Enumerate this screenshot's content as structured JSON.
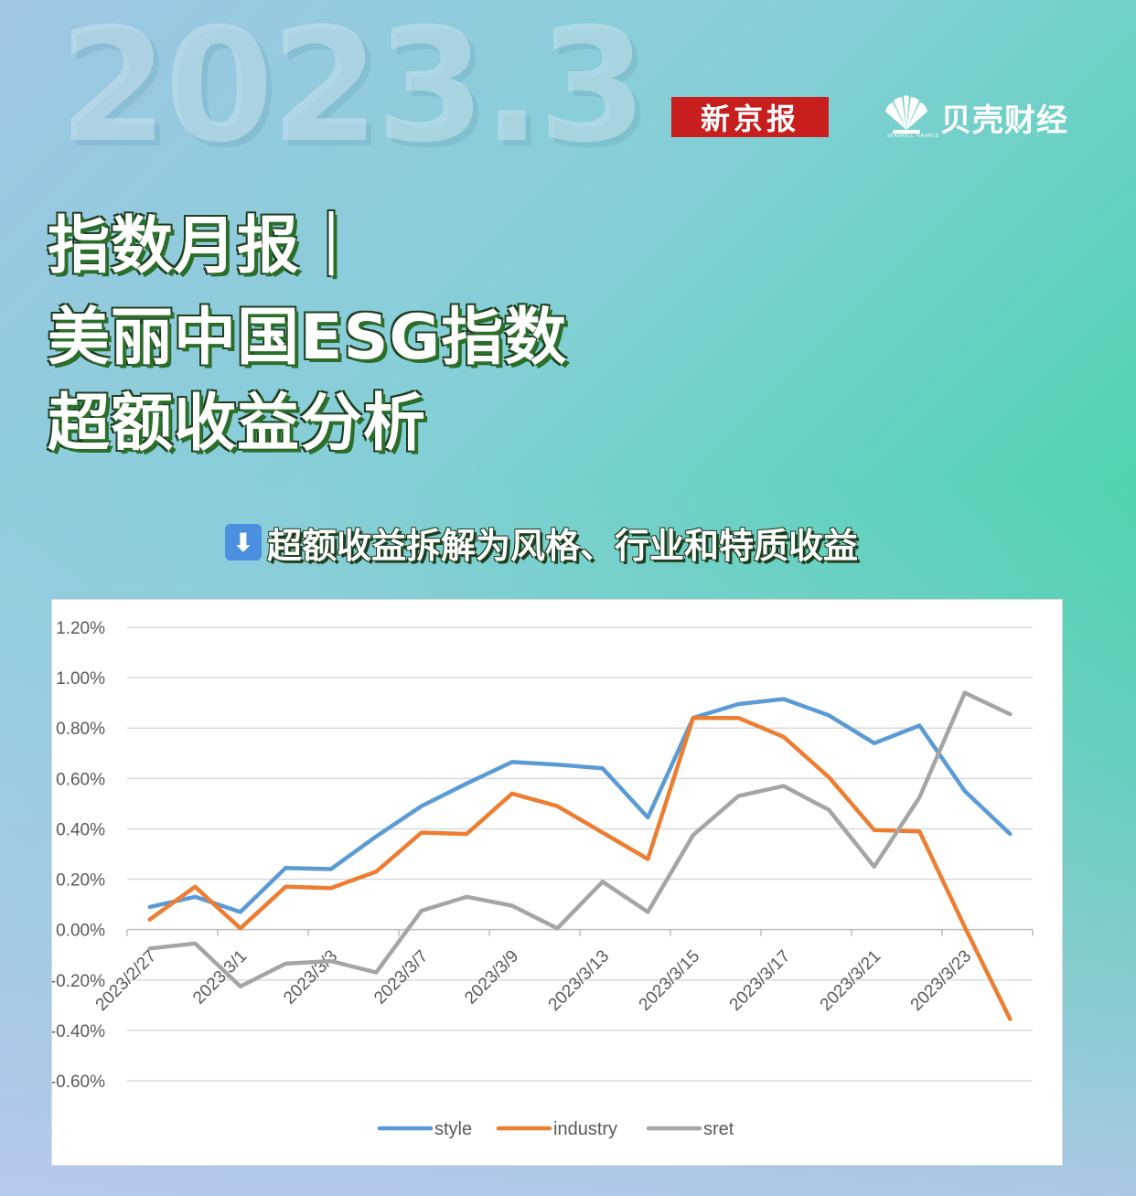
{
  "header": {
    "big_date": "2023.3",
    "brand_xjb": "新京报",
    "brand_bk": "贝壳财经",
    "brand_bk_sub": "SEASHELL FINANCE",
    "title_lines": [
      "指数月报｜",
      "美丽中国ESG指数",
      "超额收益分析"
    ],
    "subhead": "超额收益拆解为风格、行业和特质收益",
    "subhead_icon": "down-arrow-icon"
  },
  "colors": {
    "style": "#5b9bd5",
    "industry": "#ed7d31",
    "sret": "#a5a5a5",
    "grid": "#d9d9d9",
    "axis_text": "#595959"
  },
  "chart_data": {
    "type": "line",
    "x": [
      "2023/2/27",
      "2023/2/28",
      "2023/3/1",
      "2023/3/2",
      "2023/3/3",
      "2023/3/6",
      "2023/3/7",
      "2023/3/8",
      "2023/3/9",
      "2023/3/10",
      "2023/3/13",
      "2023/3/14",
      "2023/3/15",
      "2023/3/16",
      "2023/3/17",
      "2023/3/20",
      "2023/3/21",
      "2023/3/22",
      "2023/3/23",
      "2023/3/24"
    ],
    "x_tick_labels": [
      "2023/2/27",
      "2023/3/1",
      "2023/3/3",
      "2023/3/7",
      "2023/3/9",
      "2023/3/13",
      "2023/3/15",
      "2023/3/17",
      "2023/3/21",
      "2023/3/23"
    ],
    "series": [
      {
        "name": "style",
        "values": [
          0.09,
          0.13,
          0.07,
          0.245,
          0.24,
          0.37,
          0.49,
          0.58,
          0.665,
          0.655,
          0.64,
          0.445,
          0.84,
          0.895,
          0.915,
          0.85,
          0.74,
          0.81,
          0.55,
          0.38
        ]
      },
      {
        "name": "industry",
        "values": [
          0.04,
          0.17,
          0.005,
          0.17,
          0.165,
          0.23,
          0.385,
          0.38,
          0.54,
          0.49,
          0.385,
          0.28,
          0.84,
          0.84,
          0.765,
          0.605,
          0.395,
          0.39,
          0.01,
          -0.355
        ]
      },
      {
        "name": "sret",
        "values": [
          -0.075,
          -0.055,
          -0.225,
          -0.135,
          -0.125,
          -0.17,
          0.075,
          0.13,
          0.095,
          0.005,
          0.19,
          0.07,
          0.375,
          0.53,
          0.57,
          0.475,
          0.25,
          0.525,
          0.94,
          0.855
        ]
      }
    ],
    "y_ticks": [
      "1.20%",
      "1.00%",
      "0.80%",
      "0.60%",
      "0.40%",
      "0.20%",
      "0.00%",
      "-0.20%",
      "-0.40%",
      "-0.60%"
    ],
    "ylim": [
      -0.6,
      1.2
    ],
    "y_unit": "%",
    "grid": true,
    "legend_position": "bottom"
  }
}
